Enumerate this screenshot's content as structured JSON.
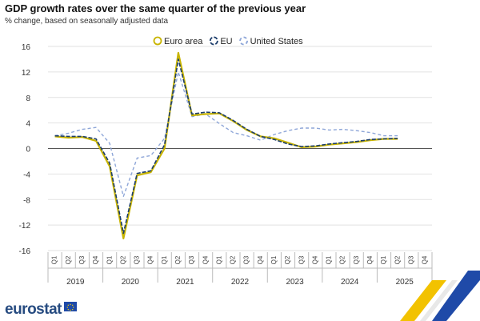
{
  "header": {
    "title": "GDP growth rates over the same quarter of the previous year",
    "subtitle": "% change, based on seasonally adjusted data"
  },
  "footer": {
    "brand": "eurostat"
  },
  "colors": {
    "euro_area": "#c8b400",
    "eu": "#1c3d6b",
    "us": "#8ea6d8",
    "brand": "#264b80"
  },
  "chart_data": {
    "type": "line",
    "quarters": [
      "Q1",
      "Q2",
      "Q3",
      "Q4"
    ],
    "years": [
      "2019",
      "2020",
      "2021",
      "2022",
      "2023",
      "2024",
      "2025"
    ],
    "yticks": [
      16,
      12,
      8,
      4,
      0,
      -4,
      -8,
      -12,
      -16
    ],
    "ylim": [
      -16,
      16
    ],
    "grid": true,
    "legend_position": "top-center",
    "series": [
      {
        "name": "Euro area",
        "style": "solid",
        "values": [
          1.9,
          1.7,
          1.8,
          1.2,
          -2.8,
          -14.1,
          -4.2,
          -3.7,
          0.0,
          15.0,
          5.2,
          5.4,
          5.5,
          4.3,
          2.9,
          1.9,
          1.6,
          0.9,
          0.2,
          0.3,
          0.6,
          0.8,
          1.0,
          1.3,
          1.5,
          1.5
        ]
      },
      {
        "name": "EU",
        "style": "dashed",
        "values": [
          2.0,
          1.9,
          1.9,
          1.5,
          -2.3,
          -13.3,
          -3.9,
          -3.5,
          0.6,
          14.0,
          5.4,
          5.7,
          5.6,
          4.4,
          3.0,
          1.9,
          1.4,
          0.7,
          0.3,
          0.4,
          0.7,
          0.9,
          1.1,
          1.4,
          1.5,
          1.6
        ]
      },
      {
        "name": "United States",
        "style": "dotted",
        "values": [
          2.0,
          2.4,
          3.0,
          3.3,
          0.8,
          -7.5,
          -1.5,
          -1.1,
          1.6,
          12.0,
          5.0,
          5.4,
          3.9,
          2.5,
          2.0,
          1.3,
          2.2,
          2.8,
          3.2,
          3.2,
          2.9,
          3.0,
          2.8,
          2.5,
          2.0,
          2.0
        ]
      }
    ]
  }
}
